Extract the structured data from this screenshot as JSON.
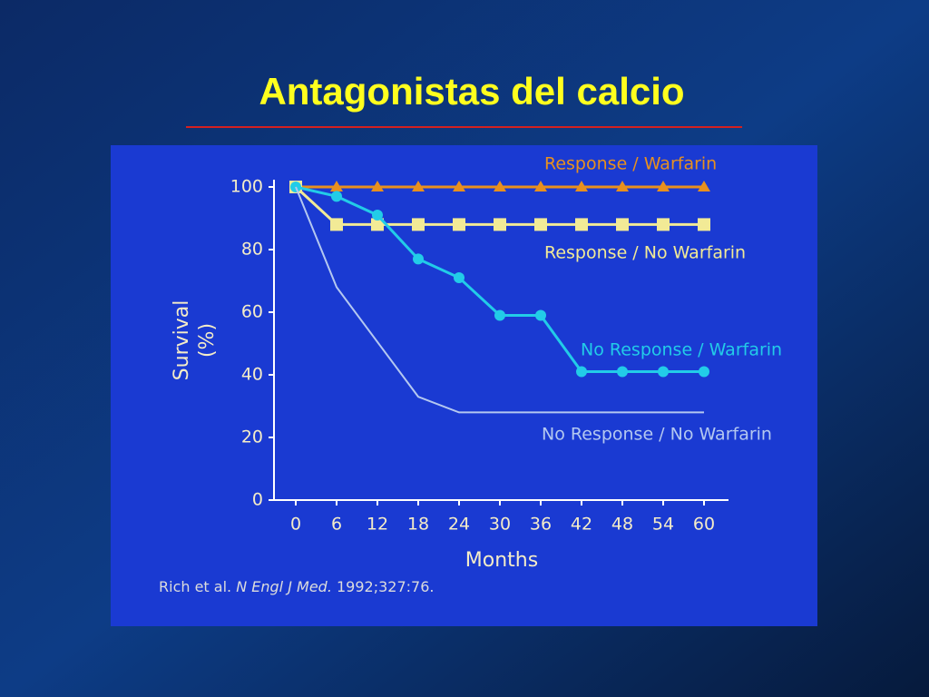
{
  "chart_data": {
    "type": "line",
    "title": "Antagonistas del calcio",
    "x_label": "Months",
    "y_label": [
      "Survival",
      "(%)"
    ],
    "citation": {
      "authors": "Rich et al.",
      "journal": "N Engl J Med.",
      "ref": "1992;327:76."
    },
    "xlim": [
      0,
      60
    ],
    "ylim": [
      0,
      100
    ],
    "xticks": [
      0,
      6,
      12,
      18,
      24,
      30,
      36,
      42,
      48,
      54,
      60
    ],
    "yticks": [
      0,
      20,
      40,
      60,
      80,
      100
    ],
    "series": [
      {
        "name": "Response / Warfarin",
        "color": "#e8901e",
        "marker": "triangle",
        "x": [
          0,
          6,
          12,
          18,
          24,
          30,
          36,
          42,
          48,
          54,
          60
        ],
        "values": [
          100,
          100,
          100,
          100,
          100,
          100,
          100,
          100,
          100,
          100,
          100
        ]
      },
      {
        "name": "Response / No Warfarin",
        "color": "#f2ea96",
        "marker": "square",
        "x": [
          0,
          6,
          12,
          18,
          24,
          30,
          36,
          42,
          48,
          54,
          60
        ],
        "values": [
          100,
          88,
          88,
          88,
          88,
          88,
          88,
          88,
          88,
          88,
          88
        ]
      },
      {
        "name": "No Response / Warfarin",
        "color": "#22cce8",
        "marker": "circle",
        "x": [
          0,
          6,
          12,
          18,
          24,
          30,
          36,
          42,
          48,
          54,
          60
        ],
        "values": [
          100,
          97,
          91,
          77,
          71,
          59,
          59,
          41,
          41,
          41,
          41
        ]
      },
      {
        "name": "No Response / No Warfarin",
        "color": "#b4c8f0",
        "marker": "none",
        "x": [
          0,
          6,
          18,
          24,
          60
        ],
        "values": [
          100,
          68,
          33,
          28,
          28
        ]
      }
    ]
  }
}
